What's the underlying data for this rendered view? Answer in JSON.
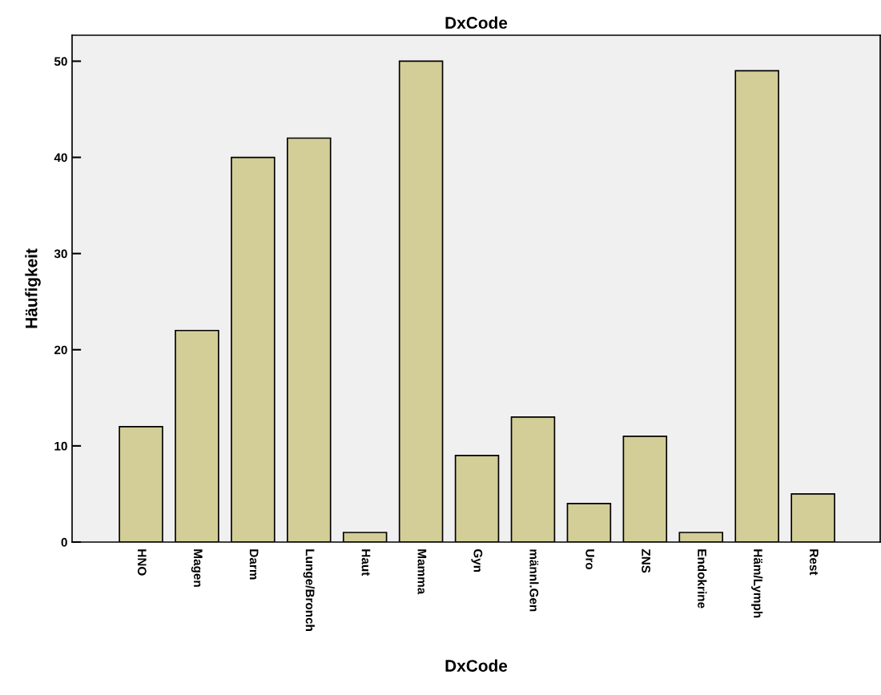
{
  "chart_data": {
    "type": "bar",
    "title": "DxCode",
    "xlabel": "DxCode",
    "ylabel": "Häufigkeit",
    "categories": [
      "HNO",
      "Magen",
      "Darm",
      "Lunge/Bronch",
      "Haut",
      "Mamma",
      "Gyn",
      "männl.Gen",
      "Uro",
      "ZNS",
      "Endokrine",
      "Häm/Lymph",
      "Rest"
    ],
    "values": [
      12,
      22,
      40,
      42,
      1,
      50,
      9,
      13,
      4,
      11,
      1,
      49,
      5
    ],
    "color": "#d3ce97",
    "ylim": [
      0,
      52.7
    ],
    "yticks": [
      0,
      10,
      20,
      30,
      40,
      50
    ],
    "grid": false
  }
}
